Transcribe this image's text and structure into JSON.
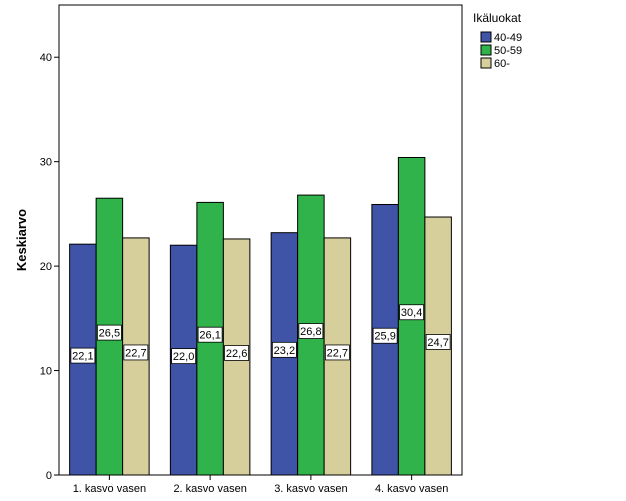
{
  "chart_data": {
    "type": "bar",
    "title": "",
    "xlabel": "",
    "ylabel": "Keskiarvo",
    "ylim": [
      0,
      45
    ],
    "yticks": [
      0,
      10,
      20,
      30,
      40
    ],
    "grid": false,
    "legend_title": "Ikäluokat",
    "legend_placement": "right-top",
    "categories": [
      "1. kasvo vasen",
      "2. kasvo vasen",
      "3. kasvo vasen",
      "4. kasvo vasen"
    ],
    "series": [
      {
        "name": "40-49",
        "color": "#3f54a7",
        "values": [
          22.1,
          22.0,
          23.2,
          25.9
        ],
        "labels": [
          "22,1",
          "22,0",
          "23,2",
          "25,9"
        ]
      },
      {
        "name": "50-59",
        "color": "#2fb34a",
        "values": [
          26.5,
          26.1,
          26.8,
          30.4
        ],
        "labels": [
          "26,5",
          "26,1",
          "26,8",
          "30,4"
        ]
      },
      {
        "name": "60-",
        "color": "#d6cf9b",
        "values": [
          22.7,
          22.6,
          22.7,
          24.7
        ],
        "labels": [
          "22,7",
          "22,6",
          "22,7",
          "24,7"
        ]
      }
    ]
  }
}
